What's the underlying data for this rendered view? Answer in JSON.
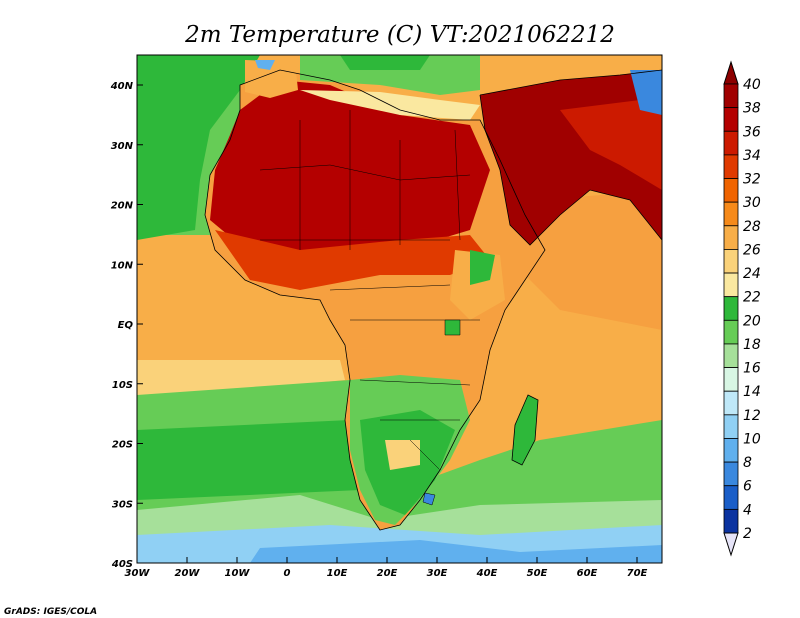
{
  "title": "2m Temperature (C) VT:2021062212",
  "credit": "GrADS: IGES/COLA",
  "x_axis_labels": [
    "30W",
    "20W",
    "10W",
    "0",
    "10E",
    "20E",
    "30E",
    "40E",
    "50E",
    "60E",
    "70E"
  ],
  "y_axis_labels": [
    "40N",
    "30N",
    "20N",
    "10N",
    "EQ",
    "10S",
    "20S",
    "30S",
    "40S"
  ],
  "colorbar": {
    "labels": [
      "40",
      "38",
      "36",
      "34",
      "32",
      "30",
      "28",
      "26",
      "24",
      "22",
      "20",
      "18",
      "16",
      "14",
      "12",
      "10",
      "8",
      "6",
      "4",
      "2"
    ],
    "colors": [
      "#a00000",
      "#b40000",
      "#cc1a00",
      "#e03a00",
      "#f06400",
      "#f68a1a",
      "#f8ae48",
      "#fad27a",
      "#fae8a0",
      "#2eb83a",
      "#66cc56",
      "#a6e09a",
      "#d8f6e4",
      "#bfe8f8",
      "#90d0f4",
      "#60b0ee",
      "#3a88de",
      "#1a5ec8",
      "#0b33a0",
      "#06166a"
    ],
    "top_arrow_color": "#8c0000",
    "bottom_arrow_color": "#e6e4f8"
  },
  "map_colors": {
    "ocean_equator": "#f8ae48",
    "ocean_cool": "#66cc56",
    "ocean_cold": "#90d0f4",
    "sahara": "#b40000",
    "sahel": "#e03a00",
    "central_africa": "#f6a040",
    "southern_africa": "#66cc56",
    "arabia": "#a00000"
  }
}
